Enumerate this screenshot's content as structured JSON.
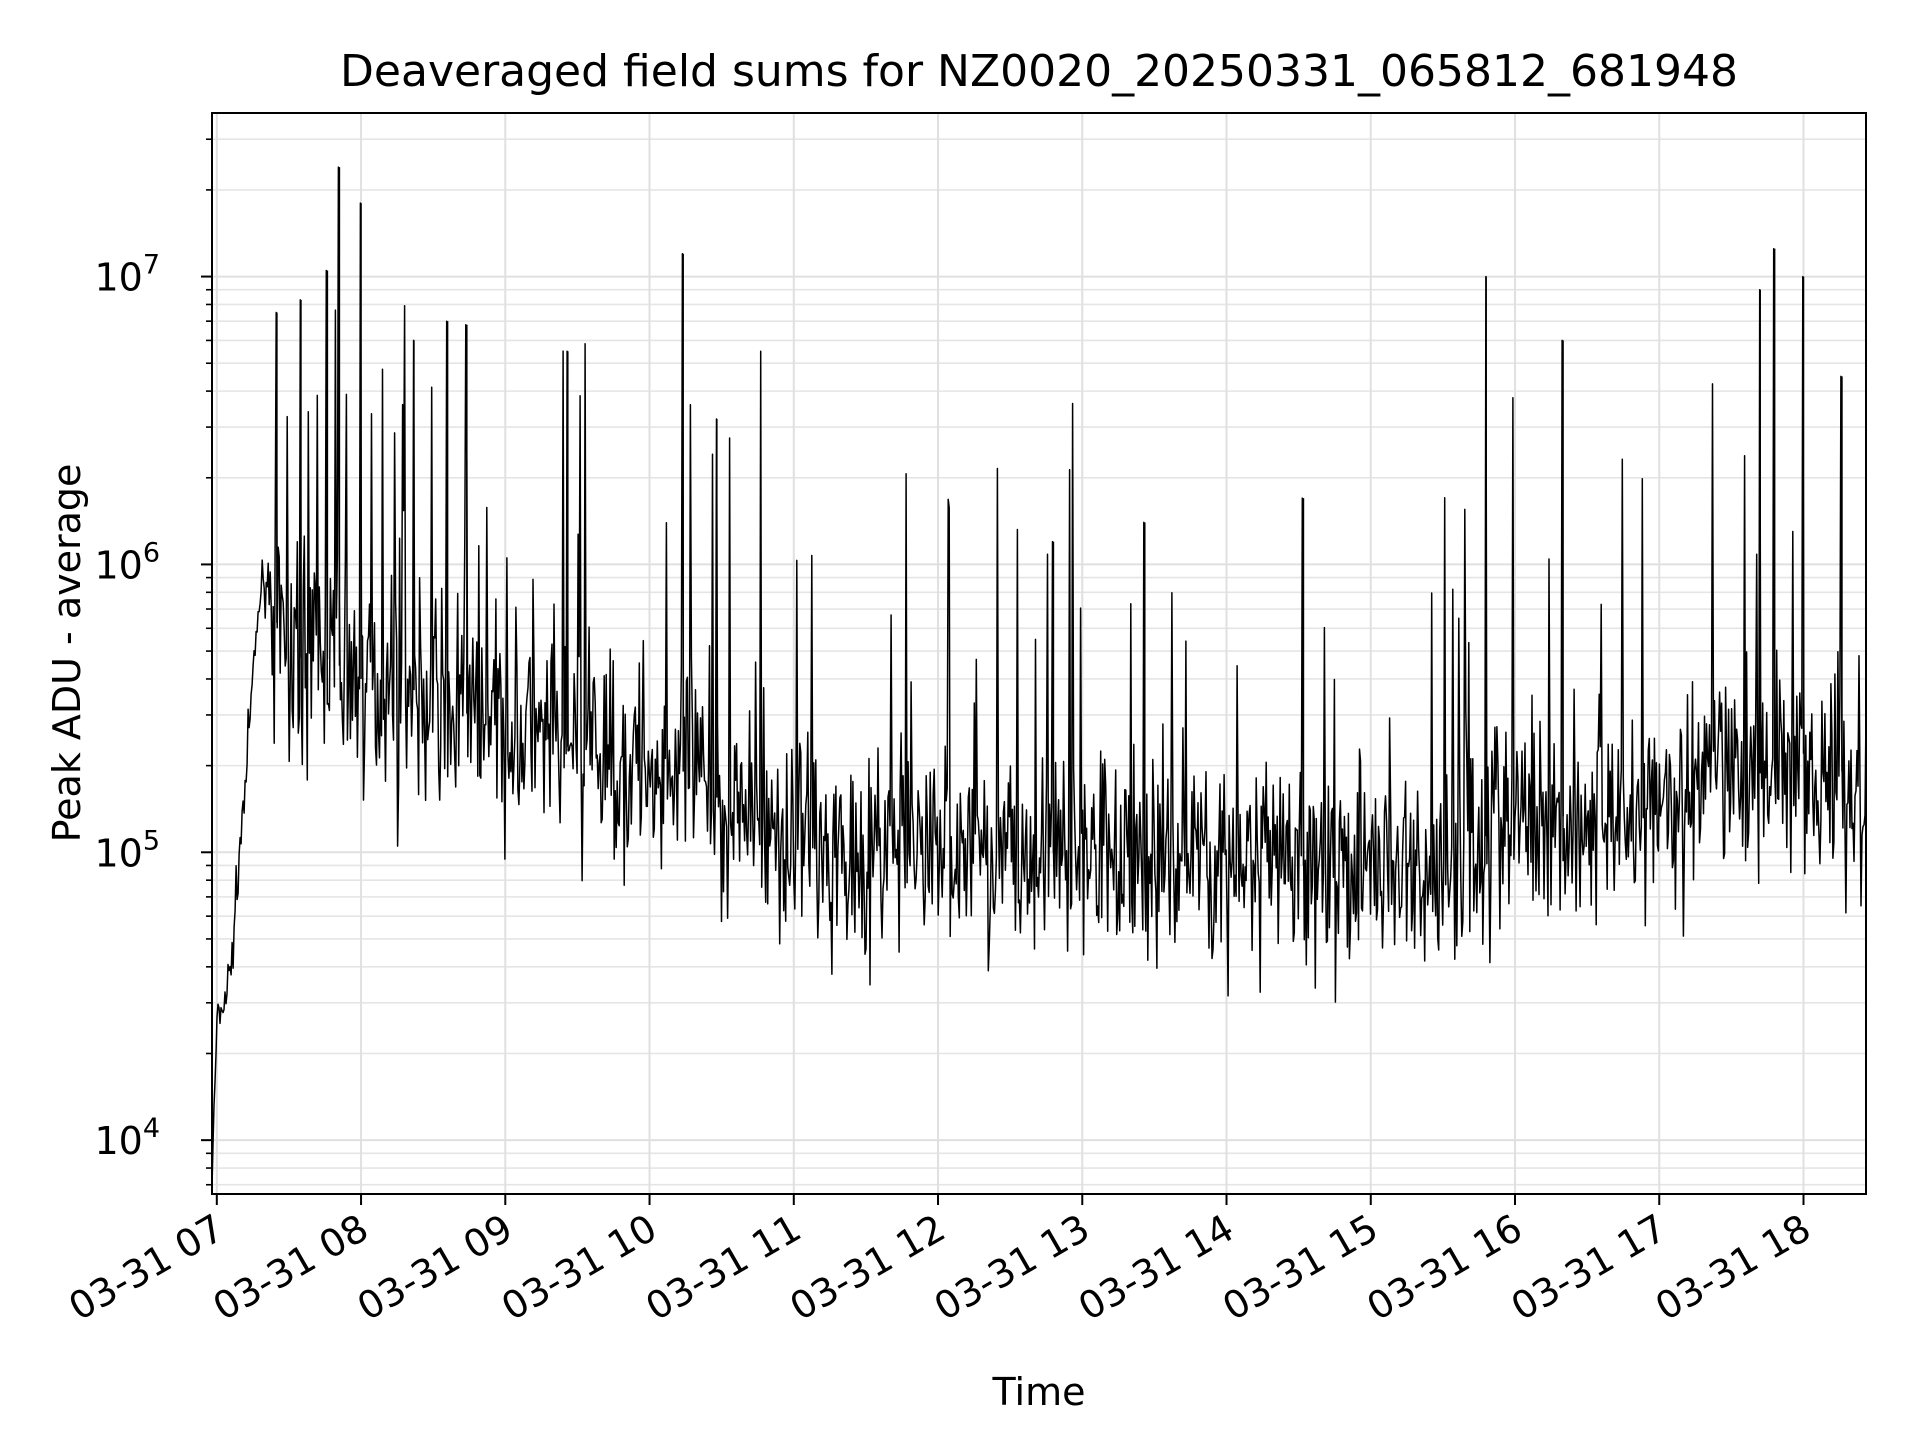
{
  "chart_data": {
    "type": "line",
    "title": "Deaveraged field sums for NZ0020_20250331_065812_681948",
    "xlabel": "Time",
    "ylabel": "Peak ADU - average",
    "y_scale": "log",
    "x_range": [
      "2025-03-31 06:58",
      "2025-03-31 18:26"
    ],
    "ylim": [
      6500,
      37000000
    ],
    "grid": true,
    "line_color": "#000000",
    "x_ticks": [
      "03-31 07",
      "03-31 08",
      "03-31 09",
      "03-31 10",
      "03-31 11",
      "03-31 12",
      "03-31 13",
      "03-31 14",
      "03-31 15",
      "03-31 16",
      "03-31 17",
      "03-31 18"
    ],
    "y_ticks": [
      {
        "base": "10",
        "exp": "4",
        "value": 10000
      },
      {
        "base": "10",
        "exp": "5",
        "value": 100000
      },
      {
        "base": "10",
        "exp": "6",
        "value": 1000000
      },
      {
        "base": "10",
        "exp": "7",
        "value": 10000000
      }
    ],
    "series": [
      {
        "x": [
          "06:58",
          "07:00",
          "07:03",
          "07:06",
          "07:09",
          "07:12",
          "07:15",
          "07:18",
          "07:21",
          "07:24",
          "07:27",
          "07:30",
          "07:40",
          "07:50",
          "08:00",
          "08:15",
          "08:30",
          "08:45",
          "09:00",
          "09:15",
          "09:30",
          "09:45",
          "10:00",
          "10:15",
          "10:30",
          "10:45",
          "11:00",
          "11:15",
          "11:30",
          "11:45",
          "12:00",
          "12:15",
          "12:30",
          "12:45",
          "13:00",
          "13:15",
          "13:30",
          "13:45",
          "14:00",
          "14:15",
          "14:30",
          "14:45",
          "15:00",
          "15:15",
          "15:30",
          "15:45",
          "16:00",
          "16:15",
          "16:30",
          "16:45",
          "17:00",
          "17:15",
          "17:30",
          "17:45",
          "18:00",
          "18:15",
          "18:26"
        ],
        "values": [
          7000,
          25000,
          30000,
          40000,
          90000,
          180000,
          400000,
          800000,
          900000,
          700000,
          500000,
          450000,
          500000,
          450000,
          400000,
          380000,
          350000,
          300000,
          250000,
          240000,
          230000,
          220000,
          200000,
          190000,
          150000,
          120000,
          110000,
          105000,
          100000,
          110000,
          110000,
          100000,
          100000,
          100000,
          100000,
          100000,
          100000,
          100000,
          90000,
          90000,
          90000,
          90000,
          90000,
          85000,
          90000,
          110000,
          130000,
          130000,
          140000,
          140000,
          150000,
          170000,
          180000,
          190000,
          220000,
          200000,
          120000
        ],
        "spikes": [
          {
            "x": "07:25",
            "y": 7500000
          },
          {
            "x": "07:35",
            "y": 8300000
          },
          {
            "x": "07:46",
            "y": 10500000
          },
          {
            "x": "07:51",
            "y": 24000000
          },
          {
            "x": "08:00",
            "y": 18000000
          },
          {
            "x": "08:22",
            "y": 6000000
          },
          {
            "x": "08:36",
            "y": 7000000
          },
          {
            "x": "08:44",
            "y": 6800000
          },
          {
            "x": "09:26",
            "y": 5500000
          },
          {
            "x": "10:14",
            "y": 12000000
          },
          {
            "x": "10:28",
            "y": 3200000
          },
          {
            "x": "12:48",
            "y": 1200000
          },
          {
            "x": "13:26",
            "y": 1400000
          },
          {
            "x": "14:32",
            "y": 1700000
          },
          {
            "x": "15:48",
            "y": 10000000
          },
          {
            "x": "16:20",
            "y": 6000000
          },
          {
            "x": "17:42",
            "y": 9000000
          },
          {
            "x": "17:48",
            "y": 12500000
          },
          {
            "x": "18:00",
            "y": 10000000
          },
          {
            "x": "18:16",
            "y": 4500000
          }
        ]
      }
    ]
  }
}
